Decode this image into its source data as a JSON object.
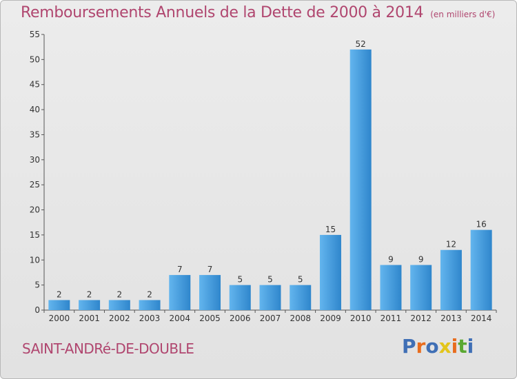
{
  "title": "Remboursements Annuels de la Dette de 2000 à 2014",
  "subtitle": "(en milliers d'€)",
  "commune": "SAINT-ANDRé-DE-DOUBLE",
  "brand": {
    "text": "Proxiti",
    "letter_colors": [
      "#3f6fb5",
      "#e86c1d",
      "#3f6fb5",
      "#e3c51b",
      "#e86c1d",
      "#5aa832",
      "#3f6fb5"
    ]
  },
  "colors": {
    "bar": "#3e93d8",
    "bar_light": "#5aaee8",
    "title": "#b0466f",
    "frame_bg": "#e6e6e6"
  },
  "chart_data": {
    "type": "bar",
    "title": "Remboursements Annuels de la Dette de 2000 à 2014",
    "subtitle": "(en milliers d'€)",
    "categories": [
      "2000",
      "2001",
      "2002",
      "2003",
      "2004",
      "2005",
      "2006",
      "2007",
      "2008",
      "2009",
      "2010",
      "2011",
      "2012",
      "2013",
      "2014"
    ],
    "values": [
      2,
      2,
      2,
      2,
      7,
      7,
      5,
      5,
      5,
      15,
      52,
      9,
      9,
      12,
      16
    ],
    "ylim": [
      0,
      55
    ],
    "yticks": [
      0,
      5,
      10,
      15,
      20,
      25,
      30,
      35,
      40,
      45,
      50,
      55
    ],
    "grid": false,
    "legend": "none"
  }
}
